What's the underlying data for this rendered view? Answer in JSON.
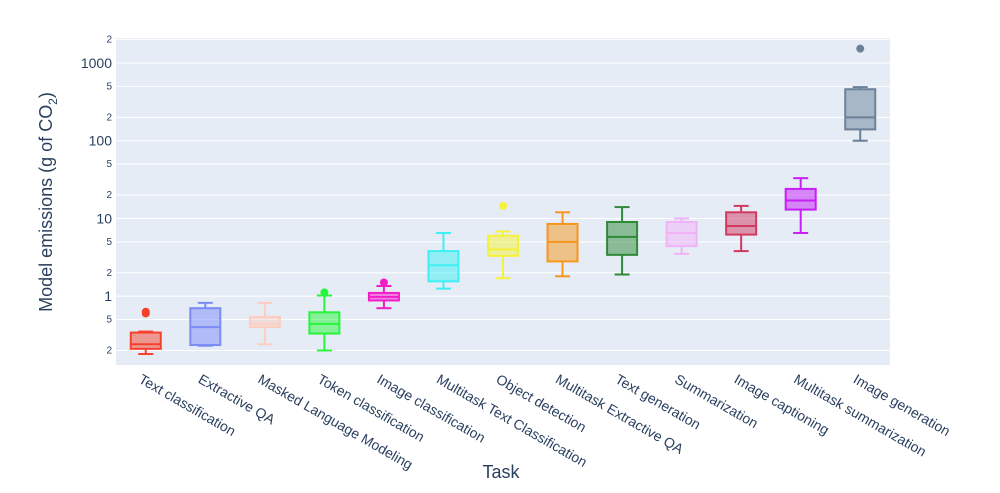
{
  "chart_data": {
    "type": "box",
    "xlabel": "Task",
    "ylabel": "Model emissions (g of CO",
    "ylabel_subscript": "2",
    "ylabel_close": ")",
    "yscale": "log",
    "ylim": [
      0.13,
      2100
    ],
    "grid": true,
    "legend": "none",
    "plot_bg": "#e5ecf6",
    "ytick_labels": [
      {
        "v": 0.2,
        "t": "2"
      },
      {
        "v": 0.5,
        "t": "5"
      },
      {
        "v": 1,
        "t": "1"
      },
      {
        "v": 2,
        "t": "2"
      },
      {
        "v": 5,
        "t": "5"
      },
      {
        "v": 10,
        "t": "10"
      },
      {
        "v": 20,
        "t": "2"
      },
      {
        "v": 50,
        "t": "5"
      },
      {
        "v": 100,
        "t": "100"
      },
      {
        "v": 200,
        "t": "2"
      },
      {
        "v": 500,
        "t": "5"
      },
      {
        "v": 1000,
        "t": "1000"
      },
      {
        "v": 2000,
        "t": "2"
      }
    ],
    "series": [
      {
        "name": "Text classification",
        "color": "#f5412c",
        "min": 0.18,
        "q1": 0.21,
        "median": 0.24,
        "q3": 0.34,
        "max": 0.35,
        "outliers": [
          0.6,
          0.63
        ]
      },
      {
        "name": "Extractive QA",
        "color": "#7b8cf7",
        "min": 0.23,
        "q1": 0.235,
        "median": 0.4,
        "q3": 0.7,
        "max": 0.82,
        "outliers": []
      },
      {
        "name": "Masked Language Modeling",
        "color": "#fccdc0",
        "min": 0.24,
        "q1": 0.4,
        "median": 0.44,
        "q3": 0.54,
        "max": 0.82,
        "outliers": []
      },
      {
        "name": "Token classification",
        "color": "#27f53c",
        "min": 0.2,
        "q1": 0.33,
        "median": 0.44,
        "q3": 0.62,
        "max": 1.02,
        "outliers": [
          1.12
        ]
      },
      {
        "name": "Image classification",
        "color": "#f31cc9",
        "min": 0.7,
        "q1": 0.88,
        "median": 0.98,
        "q3": 1.1,
        "max": 1.35,
        "outliers": [
          1.5
        ]
      },
      {
        "name": "Multitask Text Classification",
        "color": "#3ff0f3",
        "min": 1.25,
        "q1": 1.55,
        "median": 2.5,
        "q3": 3.8,
        "max": 6.5,
        "outliers": []
      },
      {
        "name": "Object detection",
        "color": "#f5f23c",
        "min": 1.7,
        "q1": 3.3,
        "median": 4.0,
        "q3": 6.0,
        "max": 6.8,
        "outliers": [
          14.5
        ]
      },
      {
        "name": "Multitask Extractive QA",
        "color": "#f7961c",
        "min": 1.8,
        "q1": 2.8,
        "median": 5.0,
        "q3": 8.5,
        "max": 12.0,
        "outliers": []
      },
      {
        "name": "Text generation",
        "color": "#2f8a37",
        "min": 1.9,
        "q1": 3.4,
        "median": 5.8,
        "q3": 9.0,
        "max": 14.0,
        "outliers": []
      },
      {
        "name": "Summarization",
        "color": "#f2b2f7",
        "min": 3.5,
        "q1": 4.4,
        "median": 6.5,
        "q3": 9.0,
        "max": 10.0,
        "outliers": []
      },
      {
        "name": "Image captioning",
        "color": "#d2395f",
        "min": 3.8,
        "q1": 6.2,
        "median": 8.0,
        "q3": 12.0,
        "max": 14.5,
        "outliers": []
      },
      {
        "name": "Multitask summarization",
        "color": "#c81ef7",
        "min": 6.5,
        "q1": 13.0,
        "median": 17.0,
        "q3": 24.0,
        "max": 33.0,
        "outliers": []
      },
      {
        "name": "Image generation",
        "color": "#6c8199",
        "min": 100,
        "q1": 140,
        "median": 200,
        "q3": 460,
        "max": 490,
        "outliers": [
          1530
        ]
      }
    ]
  }
}
